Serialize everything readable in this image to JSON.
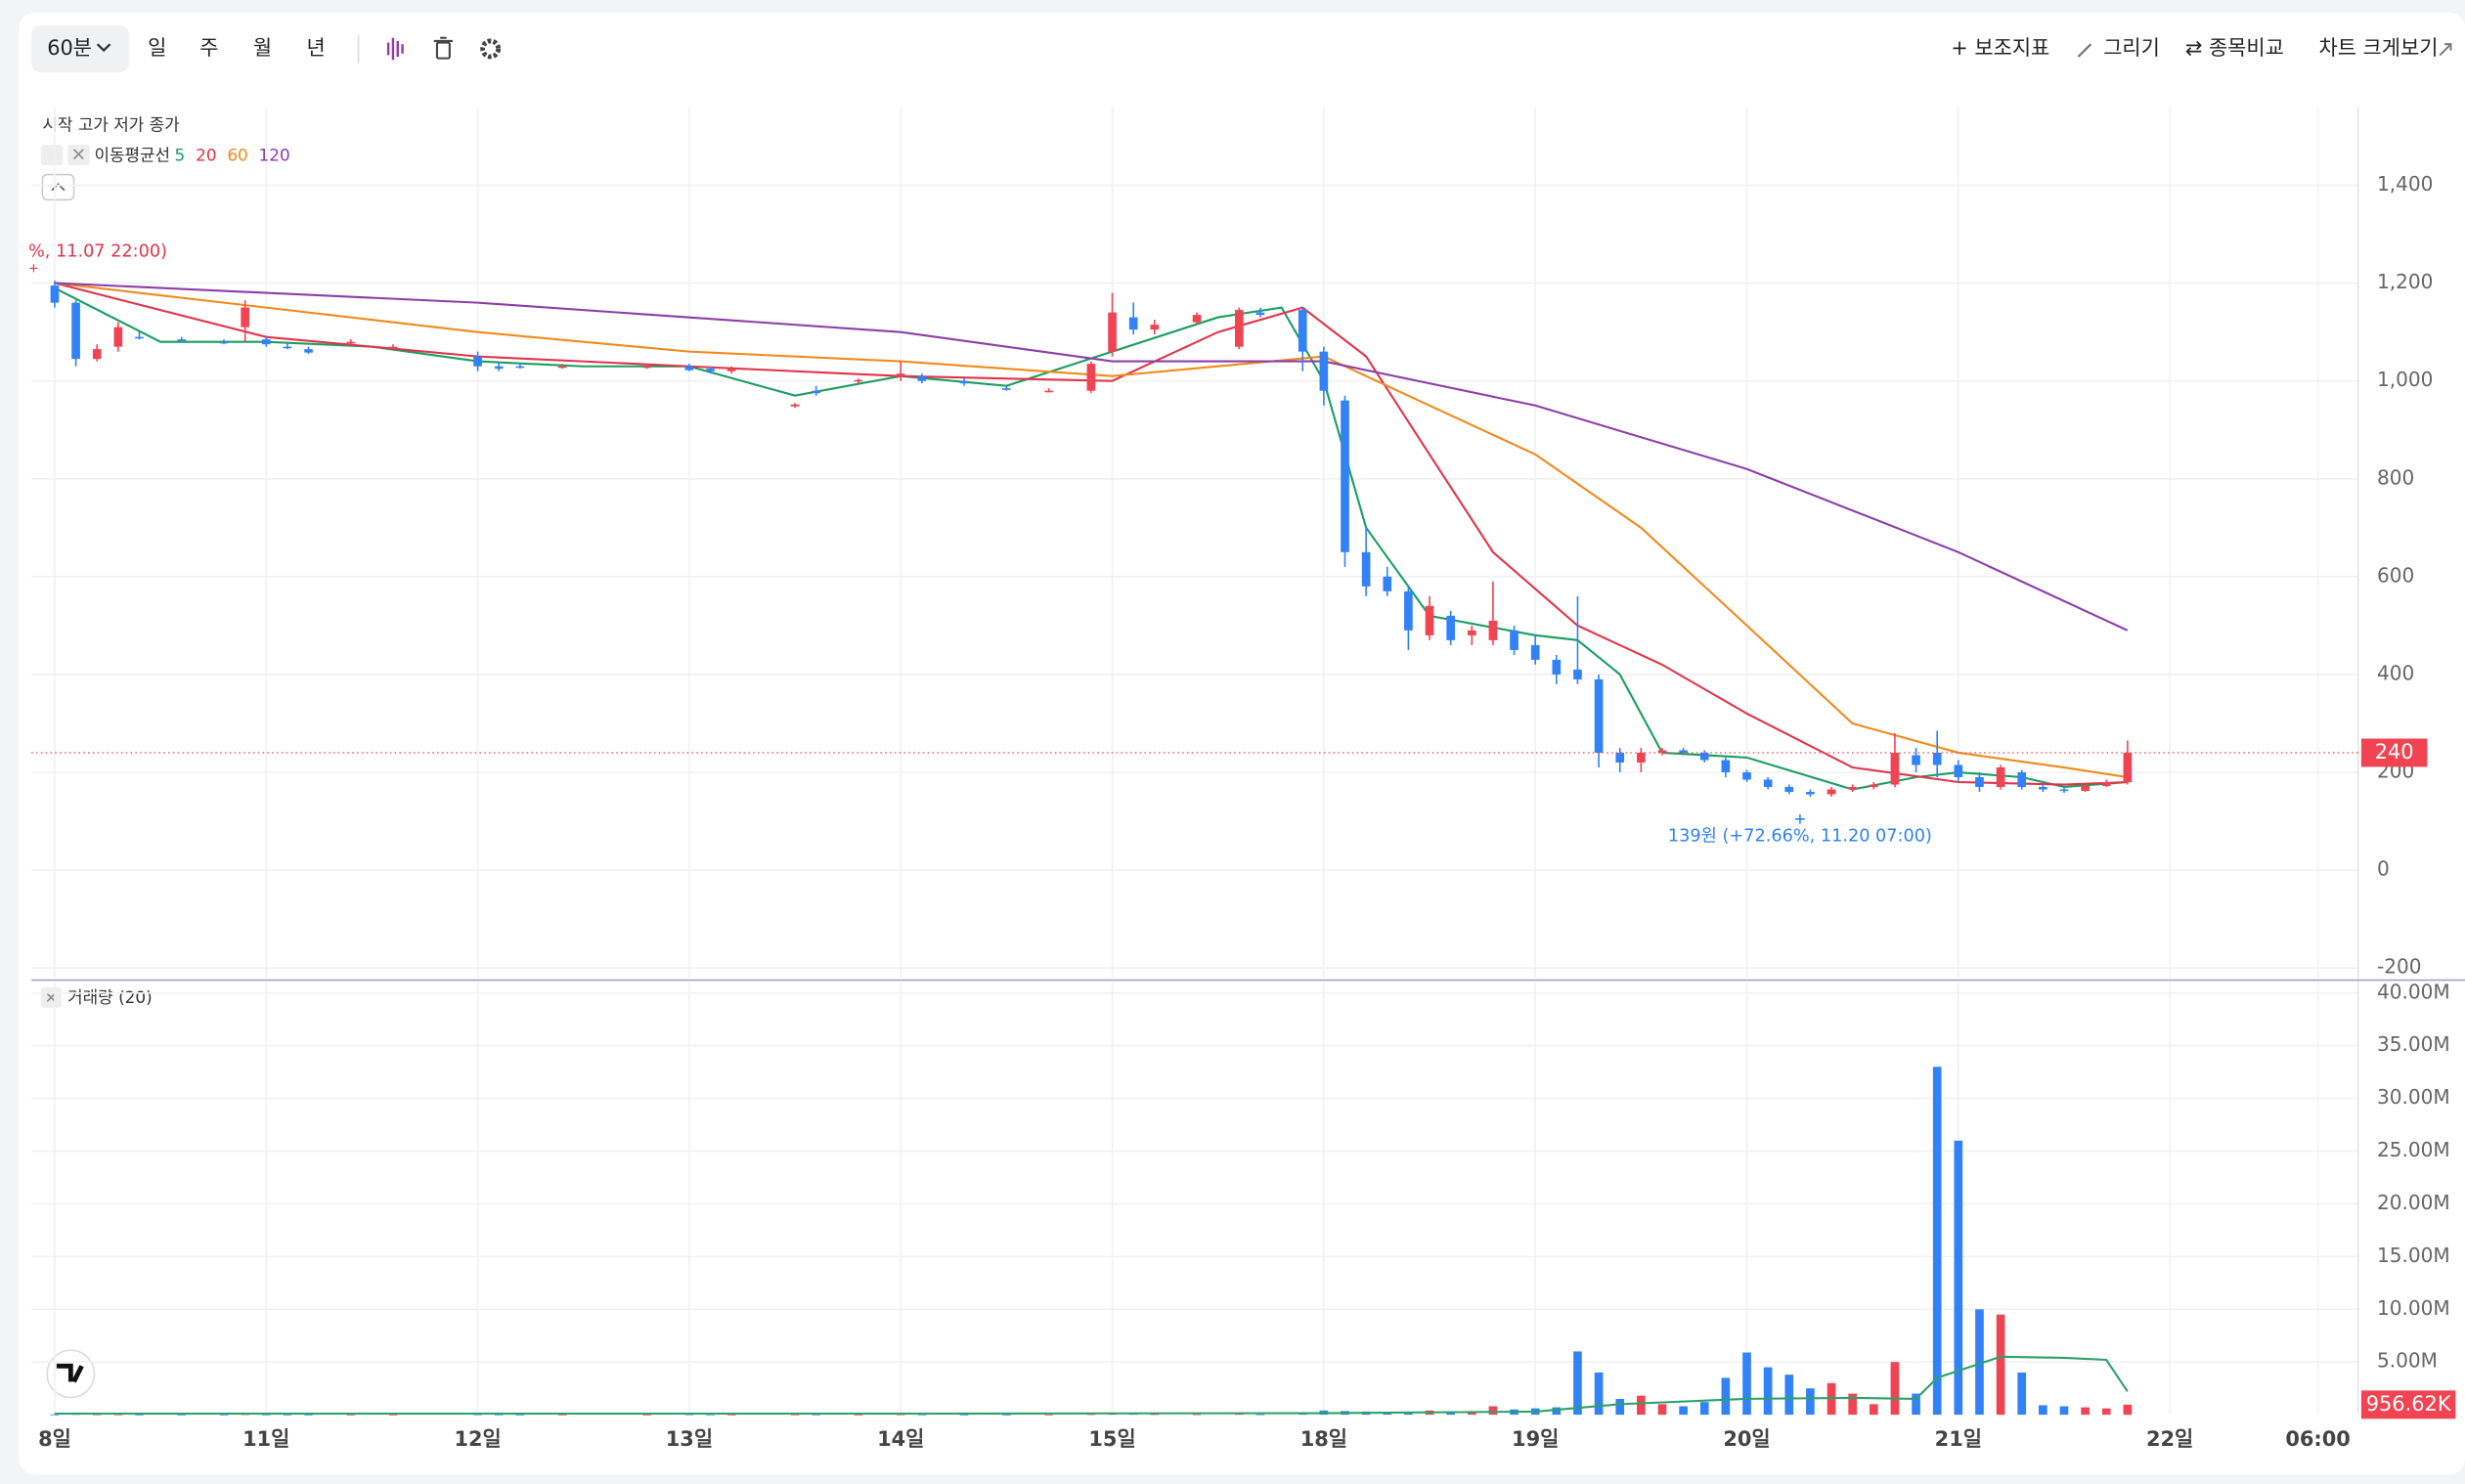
{
  "toolbar": {
    "interval": "60분",
    "periods": [
      "일",
      "주",
      "월",
      "년"
    ],
    "actions": [
      "+ 보조지표",
      "그리기",
      "⇄ 종목비교",
      "차트 크게보기"
    ]
  },
  "chart_data": [
    {
      "type": "candlestick",
      "legend": "시작 고가 저가 종가",
      "ma_title": "이동평균선",
      "up_color": "#f04452",
      "down_color": "#3182f6",
      "grid": true,
      "x": [
        0,
        1,
        2,
        3,
        4,
        6,
        8,
        9,
        10,
        11,
        12,
        14,
        16,
        20,
        21,
        22,
        24,
        28,
        30,
        31,
        32,
        35,
        36,
        38,
        40,
        41,
        43,
        45,
        47,
        49,
        50,
        51,
        52,
        54,
        56,
        57,
        59,
        60,
        61,
        62,
        63,
        64,
        65,
        66,
        67,
        68,
        69,
        70,
        71,
        72,
        73,
        74,
        75,
        76,
        77,
        78,
        79,
        80,
        81,
        82,
        83,
        84,
        85,
        86,
        87,
        88,
        89,
        90,
        91,
        92,
        93,
        94,
        95,
        96,
        97,
        98
      ],
      "open": [
        1195,
        1160,
        1045,
        1070,
        1090,
        1085,
        1080,
        1110,
        1085,
        1070,
        1065,
        1080,
        1070,
        1050,
        1030,
        1030,
        1030,
        1030,
        1030,
        1025,
        1020,
        948,
        980,
        1000,
        1010,
        1010,
        1000,
        985,
        980,
        980,
        1060,
        1130,
        1105,
        1120,
        1070,
        1140,
        1145,
        1060,
        960,
        650,
        600,
        570,
        480,
        520,
        480,
        470,
        490,
        460,
        430,
        410,
        390,
        240,
        220,
        240,
        245,
        240,
        225,
        200,
        185,
        170,
        160,
        155,
        165,
        170,
        175,
        235,
        240,
        215,
        190,
        170,
        200,
        170,
        165,
        162,
        172,
        180
      ],
      "high": [
        1205,
        1165,
        1075,
        1120,
        1100,
        1090,
        1085,
        1165,
        1090,
        1080,
        1070,
        1085,
        1075,
        1060,
        1040,
        1035,
        1035,
        1035,
        1035,
        1030,
        1030,
        955,
        990,
        1005,
        1040,
        1015,
        1005,
        990,
        985,
        1040,
        1180,
        1160,
        1125,
        1140,
        1150,
        1150,
        1150,
        1070,
        970,
        700,
        620,
        580,
        560,
        530,
        500,
        590,
        500,
        480,
        440,
        560,
        400,
        250,
        250,
        250,
        250,
        245,
        230,
        205,
        190,
        175,
        165,
        170,
        175,
        180,
        280,
        250,
        285,
        225,
        200,
        215,
        205,
        175,
        170,
        175,
        185,
        265
      ],
      "low": [
        1150,
        1030,
        1040,
        1060,
        1085,
        1080,
        1075,
        1080,
        1070,
        1065,
        1055,
        1075,
        1065,
        1020,
        1020,
        1025,
        1025,
        1025,
        1020,
        1015,
        1015,
        945,
        970,
        995,
        1000,
        995,
        990,
        980,
        978,
        975,
        1050,
        1095,
        1095,
        1115,
        1065,
        1130,
        1020,
        950,
        620,
        560,
        560,
        450,
        470,
        460,
        460,
        460,
        440,
        420,
        380,
        380,
        210,
        200,
        200,
        235,
        235,
        220,
        190,
        180,
        165,
        155,
        150,
        150,
        160,
        165,
        170,
        200,
        190,
        180,
        160,
        165,
        165,
        160,
        158,
        160,
        170,
        175
      ],
      "close": [
        1160,
        1045,
        1065,
        1110,
        1088,
        1082,
        1078,
        1150,
        1075,
        1068,
        1058,
        1080,
        1070,
        1030,
        1025,
        1028,
        1030,
        1030,
        1022,
        1020,
        1025,
        952,
        975,
        1002,
        1015,
        1000,
        995,
        982,
        980,
        1035,
        1140,
        1105,
        1115,
        1135,
        1145,
        1135,
        1060,
        980,
        650,
        580,
        570,
        490,
        540,
        470,
        490,
        510,
        450,
        430,
        400,
        390,
        240,
        220,
        240,
        245,
        240,
        225,
        200,
        185,
        170,
        160,
        155,
        165,
        170,
        175,
        240,
        215,
        215,
        190,
        170,
        210,
        170,
        165,
        162,
        172,
        180,
        240
      ],
      "series": [
        {
          "name": "5",
          "color": "#1a9e5f",
          "x": [
            0,
            5,
            10,
            15,
            20,
            25,
            30,
            35,
            40,
            45,
            50,
            55,
            58,
            60,
            62,
            65,
            70,
            72,
            74,
            76,
            80,
            85,
            88,
            90,
            93,
            95,
            98
          ],
          "values": [
            1190,
            1080,
            1080,
            1070,
            1040,
            1030,
            1030,
            970,
            1010,
            990,
            1060,
            1130,
            1150,
            1000,
            700,
            520,
            480,
            470,
            400,
            240,
            230,
            165,
            190,
            200,
            190,
            170,
            180
          ]
        },
        {
          "name": "20",
          "color": "#e0344a",
          "x": [
            0,
            10,
            20,
            30,
            40,
            50,
            55,
            59,
            62,
            65,
            68,
            72,
            76,
            80,
            85,
            90,
            95,
            98
          ],
          "values": [
            1200,
            1090,
            1050,
            1030,
            1010,
            1000,
            1100,
            1150,
            1050,
            850,
            650,
            500,
            420,
            320,
            210,
            180,
            175,
            180
          ]
        },
        {
          "name": "60",
          "color": "#f08a1a",
          "x": [
            0,
            10,
            20,
            30,
            40,
            50,
            60,
            65,
            70,
            75,
            80,
            85,
            90,
            95,
            98
          ],
          "values": [
            1200,
            1150,
            1100,
            1060,
            1040,
            1010,
            1050,
            950,
            850,
            700,
            500,
            300,
            240,
            210,
            190
          ]
        },
        {
          "name": "120",
          "color": "#8e3da8",
          "x": [
            0,
            20,
            40,
            50,
            60,
            70,
            80,
            90,
            98
          ],
          "values": [
            1200,
            1160,
            1100,
            1040,
            1040,
            950,
            820,
            650,
            490
          ]
        }
      ],
      "xlim": [
        -1.1,
        108.9
      ],
      "xticks": [
        {
          "value": 0,
          "label": "8일"
        },
        {
          "value": 10,
          "label": "11일"
        },
        {
          "value": 20,
          "label": "12일"
        },
        {
          "value": 30,
          "label": "13일"
        },
        {
          "value": 40,
          "label": "14일"
        },
        {
          "value": 50,
          "label": "15일"
        },
        {
          "value": 60,
          "label": "18일"
        },
        {
          "value": 70,
          "label": "19일"
        },
        {
          "value": 80,
          "label": "20일"
        },
        {
          "value": 90,
          "label": "21일"
        },
        {
          "value": 100,
          "label": "22일"
        },
        {
          "value": 107,
          "label": "06:00"
        }
      ],
      "ylim": [
        -220,
        1560
      ],
      "yticks": [
        -200,
        0,
        200,
        400,
        600,
        800,
        {
          "value": 1000,
          "label": "1,000"
        },
        {
          "value": 1200,
          "label": "1,200"
        },
        {
          "value": 1400,
          "label": "1,400"
        }
      ],
      "current_price": 240,
      "annotations": [
        "%, 11.07 22:00)",
        "139원 (+72.66%, 11.20 07:00)"
      ]
    },
    {
      "type": "volume",
      "title": "거래량 (20)",
      "values": [
        30000,
        60000,
        40000,
        30000,
        20000,
        20000,
        20000,
        50000,
        30000,
        20000,
        20000,
        20000,
        20000,
        40000,
        30000,
        20000,
        20000,
        20000,
        40000,
        30000,
        20000,
        30000,
        30000,
        20000,
        40000,
        30000,
        20000,
        20000,
        20000,
        60000,
        150000,
        90000,
        60000,
        50000,
        80000,
        40000,
        200000,
        400000,
        350000,
        300000,
        200000,
        250000,
        400000,
        300000,
        250000,
        800000,
        500000,
        600000,
        700000,
        6000000,
        4000000,
        1500000,
        1800000,
        1000000,
        800000,
        1200000,
        3500000,
        5900000,
        4500000,
        3800000,
        2500000,
        3000000,
        2000000,
        1000000,
        5000000,
        2000000,
        33000000,
        26000000,
        10000000,
        9500000,
        4000000,
        900000,
        800000,
        700000,
        600000,
        956620
      ],
      "ma_line": {
        "color": "#2ea06a",
        "x": [
          0,
          20,
          40,
          60,
          70,
          74,
          80,
          85,
          88,
          89,
          92,
          95,
          97,
          98
        ],
        "values": [
          100000,
          100000,
          100000,
          150000,
          300000,
          1000000,
          1500000,
          1600000,
          1500000,
          3500000,
          5500000,
          5400000,
          5200000,
          2200000
        ]
      },
      "ylim": [
        0,
        41000000
      ],
      "yticks": [
        {
          "value": 5000000,
          "label": "5.00M"
        },
        {
          "value": 10000000,
          "label": "10.00M"
        },
        {
          "value": 15000000,
          "label": "15.00M"
        },
        {
          "value": 20000000,
          "label": "20.00M"
        },
        {
          "value": 25000000,
          "label": "25.00M"
        },
        {
          "value": 30000000,
          "label": "30.00M"
        },
        {
          "value": 35000000,
          "label": "35.00M"
        },
        {
          "value": 40000000,
          "label": "40.00M"
        }
      ],
      "current": {
        "value": 956620,
        "label": "956.62K"
      }
    }
  ]
}
